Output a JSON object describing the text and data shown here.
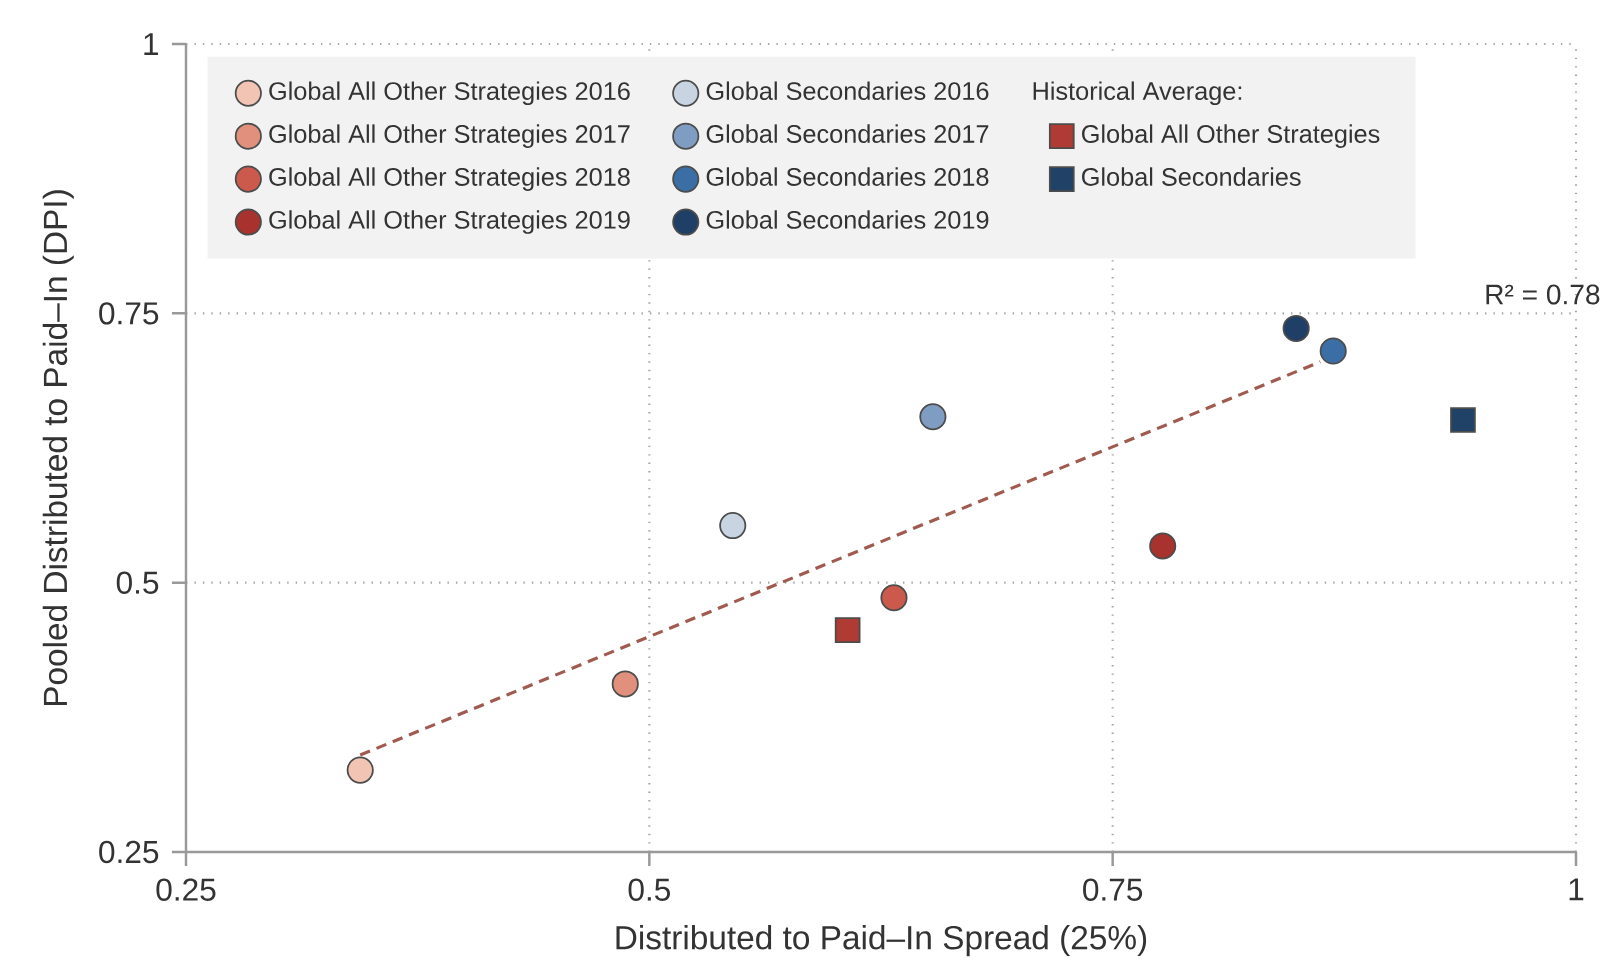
{
  "chart_data": {
    "type": "scatter",
    "xlabel": "Distributed to Paid–In Spread (25%)",
    "ylabel": "Pooled Distributed to Paid–In (DPI)",
    "legend_title": "Historical Average:",
    "xlim": [
      0.25,
      1
    ],
    "ylim": [
      0.25,
      1
    ],
    "xticks": [
      0.25,
      0.5,
      0.75,
      1
    ],
    "yticks": [
      0.25,
      0.5,
      0.75,
      1
    ],
    "grid": true,
    "legend": "top left",
    "annotations": [
      "R² =  0.78"
    ],
    "series": [
      {
        "name": "Global All Other Strategies 2016",
        "color": "#f2c4b4",
        "marker": "circle",
        "x": [
          0.344
        ],
        "values": [
          0.326
        ]
      },
      {
        "name": "Global All Other Strategies 2017",
        "color": "#e0907c",
        "marker": "circle",
        "x": [
          0.487
        ],
        "values": [
          0.406
        ]
      },
      {
        "name": "Global All Other Strategies 2018",
        "color": "#cc5a4c",
        "marker": "circle",
        "x": [
          0.632
        ],
        "values": [
          0.486
        ]
      },
      {
        "name": "Global All Other Strategies 2019",
        "color": "#a8322e",
        "marker": "circle",
        "x": [
          0.777
        ],
        "values": [
          0.534
        ]
      },
      {
        "name": "Global Secondaries 2016",
        "color": "#c8d4e2",
        "marker": "circle",
        "x": [
          0.545
        ],
        "values": [
          0.553
        ]
      },
      {
        "name": "Global Secondaries 2017",
        "color": "#7f9dc2",
        "marker": "circle",
        "x": [
          0.653
        ],
        "values": [
          0.654
        ]
      },
      {
        "name": "Global Secondaries 2018",
        "color": "#3a6ea5",
        "marker": "circle",
        "x": [
          0.869
        ],
        "values": [
          0.715
        ]
      },
      {
        "name": "Global Secondaries 2019",
        "color": "#1f3f66",
        "marker": "circle",
        "x": [
          0.849
        ],
        "values": [
          0.736
        ]
      },
      {
        "name": "Global All Other Strategies",
        "color": "#b03a34",
        "marker": "square",
        "x": [
          0.607
        ],
        "values": [
          0.456
        ]
      },
      {
        "name": "Global Secondaries",
        "color": "#1f4266",
        "marker": "square",
        "x": [
          0.939
        ],
        "values": [
          0.651
        ]
      },
      {
        "type": "line",
        "color": "#a05a50",
        "line_style": "dashed",
        "marker": "none",
        "x": [
          0.344,
          0.862
        ],
        "values": [
          0.34,
          0.705
        ]
      }
    ]
  }
}
